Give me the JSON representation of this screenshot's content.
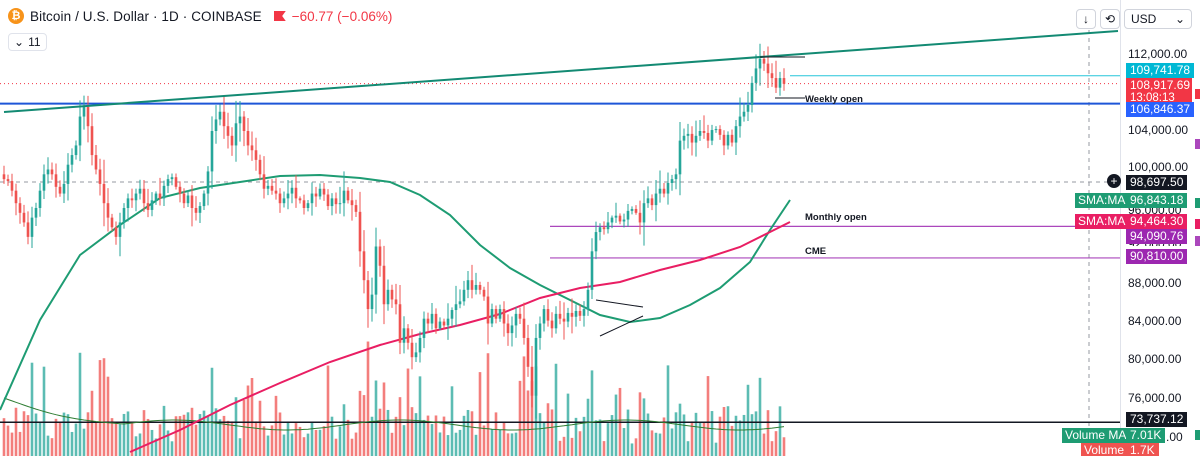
{
  "header": {
    "coin_symbol": "₿",
    "title": "Bitcoin / U.S. Dollar · 1D · COINBASE",
    "change": "−60.77 (−0.06%)",
    "indicator_count": "11",
    "collapse_glyph": "⌄",
    "scroll_glyph": "↓",
    "mode_glyph": "⟲",
    "currency": "USD",
    "currency_chevron": "⌄"
  },
  "price_axis": {
    "labels": [
      "112,000.00",
      "104,000.00",
      "100,000.00",
      "88,000.00",
      "84,000.00",
      "80,000.00",
      "76,000.00"
    ],
    "partial_labels": [
      "96,000.00",
      "92,000.00",
      ".00"
    ],
    "tags": {
      "upper_line": "109,741.78",
      "last_price": "108,917.69",
      "countdown": "13:08:13",
      "weekly_open": "106,846.37",
      "crosshair": "98,697.50",
      "sma_green": "96,843.18",
      "sma_red": "94,464.30",
      "monthly_open": "94,090.76",
      "cme": "90,810.00",
      "low_line": "73,737.12",
      "volume_ma": "7.01K",
      "volume": "1.7K"
    },
    "indicator_names": {
      "sma_green": "SMA:MA",
      "sma_red": "SMA:MA",
      "volume_ma": "Volume MA",
      "volume": "Volume"
    }
  },
  "annotations": {
    "weekly_open": "Weekly open",
    "monthly_open": "Monthly open",
    "cme": "CME"
  },
  "colors": {
    "up": "#26a69a",
    "down": "#ef5350",
    "trendline": "#138a73",
    "sma_green": "#1e9c73",
    "sma_red": "#e91e63",
    "weekly_open": "#1e56d8",
    "level": "#ab47bc",
    "upper_line": "#26c6da",
    "last_price": "#f23645",
    "accent_blue": "#2962ff"
  },
  "chart_data": {
    "type": "candlestick",
    "symbol": "Bitcoin / U.S. Dollar",
    "interval": "1D",
    "exchange": "COINBASE",
    "last_price": 108917.69,
    "change": -60.77,
    "change_percent": -0.06,
    "y_axis_range": [
      72000,
      115000
    ],
    "levels": [
      {
        "name": "Weekly open",
        "value": 106846.37
      },
      {
        "name": "Monthly open",
        "value": 94090.76
      },
      {
        "name": "CME",
        "value": 90810.0
      },
      {
        "name": "",
        "value": 109741.78
      },
      {
        "name": "",
        "value": 73737.12
      }
    ],
    "indicators": [
      {
        "name": "SMA:MA",
        "last": 96843.18
      },
      {
        "name": "SMA:MA",
        "last": 94464.3
      },
      {
        "name": "Volume MA",
        "last": "7.01K"
      },
      {
        "name": "Volume",
        "last": "1.7K"
      }
    ],
    "closes": [
      99000,
      98800,
      97800,
      96500,
      95500,
      94500,
      93000,
      95000,
      96000,
      97800,
      99500,
      100000,
      99500,
      98200,
      97500,
      98500,
      100500,
      101500,
      102500,
      105500,
      106500,
      104500,
      101500,
      100000,
      98500,
      96500,
      95000,
      94000,
      93000,
      94500,
      96000,
      97000,
      96800,
      97500,
      98000,
      96500,
      95800,
      96800,
      97500,
      97000,
      98300,
      99000,
      99200,
      98200,
      97500,
      96500,
      97300,
      96000,
      95500,
      96200,
      97500,
      99800,
      104000,
      105200,
      106000,
      104500,
      103500,
      102500,
      104800,
      105500,
      104000,
      102500,
      102000,
      101000,
      99500,
      98000,
      98300,
      97800,
      97500,
      96500,
      97000,
      97500,
      98100,
      97000,
      96800,
      96000,
      96500,
      97500,
      97200,
      98000,
      97400,
      96200,
      97000,
      96400,
      96500,
      97800,
      96800,
      96300,
      95600,
      91500,
      88500,
      85500,
      87000,
      92000,
      90000,
      86000,
      87500,
      86500,
      86000,
      82000,
      83500,
      82000,
      80500,
      81000,
      82500,
      84500,
      84000,
      85000,
      83500,
      84200,
      83800,
      84500,
      85400,
      86000,
      86300,
      87500,
      88500,
      87500,
      88000,
      87500,
      86800,
      84000,
      85500,
      84500,
      85500,
      84000,
      83000,
      83800,
      85000,
      84500,
      82500,
      79500,
      76500,
      82500,
      84000,
      85500,
      84300,
      83500,
      85000,
      84500,
      84200,
      85100,
      84700,
      85300,
      84800,
      85500,
      87500,
      91500,
      93500,
      94000,
      93800,
      94500,
      95000,
      95200,
      94600,
      94800,
      95700,
      95900,
      95500,
      94500,
      96500,
      97000,
      96300,
      97500,
      98000,
      97500,
      98600,
      99000,
      99500,
      103000,
      103500,
      103700,
      102800,
      103500,
      104000,
      103800,
      103000,
      104100,
      104200,
      103600,
      102500,
      103600,
      102800,
      104500,
      105500,
      106000,
      106700,
      109000,
      110500,
      111500,
      111000,
      110000,
      109500,
      108500,
      109500,
      108900
    ]
  }
}
